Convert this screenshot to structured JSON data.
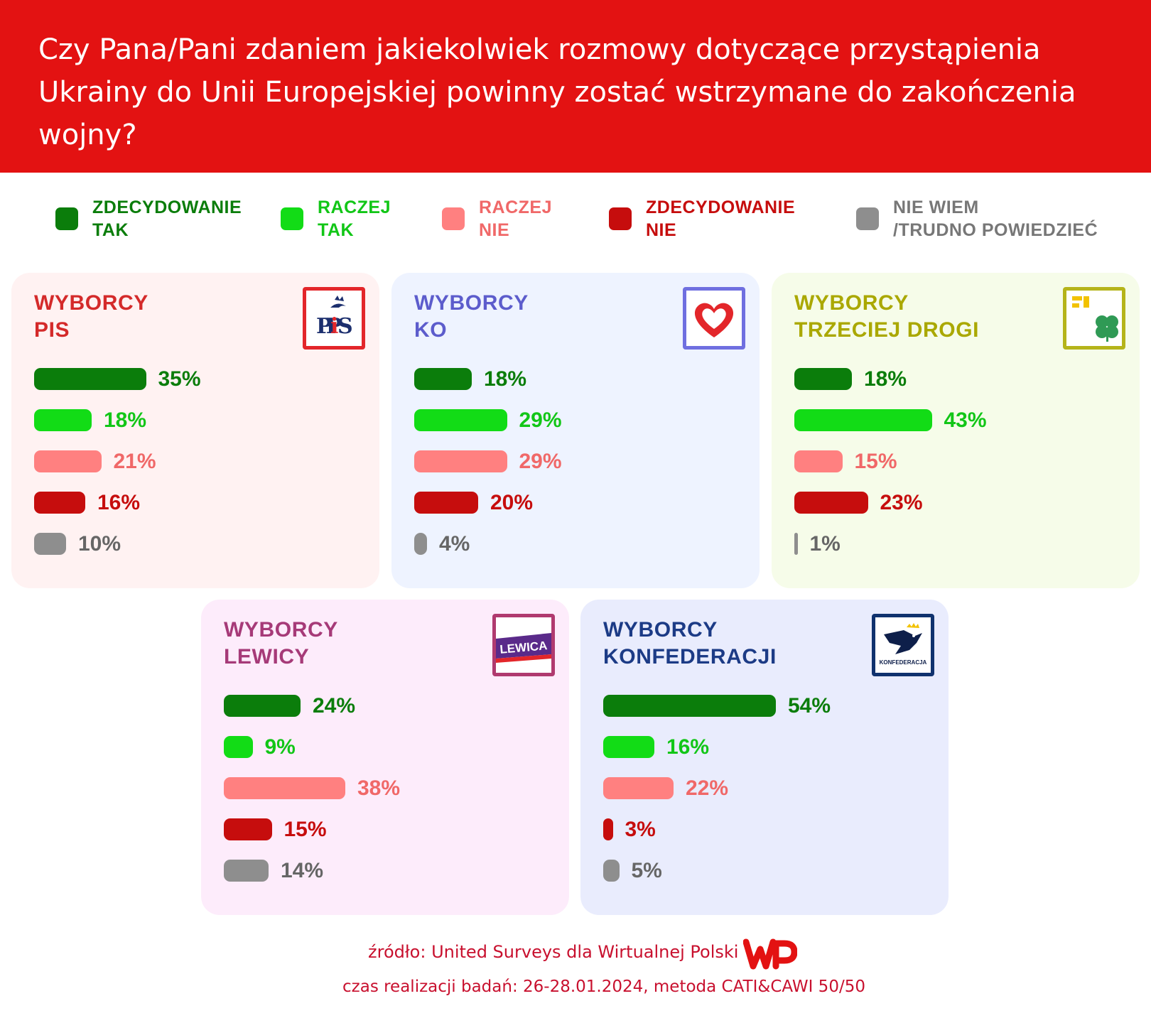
{
  "title": "Czy Pana/Pani zdaniem jakiekolwiek rozmowy dotyczące przystąpienia Ukrainy do Unii Europejskiej powinny zostać wstrzymane do zakończenia wojny?",
  "legend": [
    {
      "l1": "ZDECYDOWANIE",
      "l2": "TAK",
      "color": "#0b7d0b"
    },
    {
      "l1": "RACZEJ",
      "l2": "TAK",
      "color": "#12dc16"
    },
    {
      "l1": "RACZEJ",
      "l2": "NIE",
      "color": "#ff8080"
    },
    {
      "l1": "ZDECYDOWANIE",
      "l2": "NIE",
      "color": "#c60d0d"
    },
    {
      "l1": "NIE WIEM",
      "l2": "/TRUDNO POWIEDZIEĆ",
      "color": "#8e8e8e"
    }
  ],
  "chart_data": {
    "type": "bar",
    "orientation": "horizontal",
    "categories": [
      "ZDECYDOWANIE TAK",
      "RACZEJ TAK",
      "RACZEJ NIE",
      "ZDECYDOWANIE NIE",
      "NIE WIEM /TRUDNO POWIEDZIEĆ"
    ],
    "unit": "%",
    "panels": [
      {
        "t1": "WYBORCY",
        "t2": "PIS",
        "logo": "PiS",
        "values": [
          35,
          18,
          21,
          16,
          10
        ],
        "labels": [
          "35%",
          "18%",
          "21%",
          "16%",
          "10%"
        ]
      },
      {
        "t1": "WYBORCY",
        "t2": "KO",
        "logo": "heart",
        "values": [
          18,
          29,
          29,
          20,
          4
        ],
        "labels": [
          "18%",
          "29%",
          "29%",
          "20%",
          "4%"
        ]
      },
      {
        "t1": "WYBORCY",
        "t2": "TRZECIEJ DROGI",
        "logo": "clover",
        "values": [
          18,
          43,
          15,
          23,
          1
        ],
        "labels": [
          "18%",
          "43%",
          "15%",
          "23%",
          "1%"
        ]
      },
      {
        "t1": "WYBORCY",
        "t2": "LEWICY",
        "logo": "LEWICA",
        "values": [
          24,
          9,
          38,
          15,
          14
        ],
        "labels": [
          "24%",
          "9%",
          "38%",
          "15%",
          "14%"
        ]
      },
      {
        "t1": "WYBORCY",
        "t2": "KONFEDERACJI",
        "logo": "KONFEDERACJA",
        "values": [
          54,
          16,
          22,
          3,
          5
        ],
        "labels": [
          "54%",
          "16%",
          "22%",
          "3%",
          "5%"
        ]
      }
    ]
  },
  "footer": {
    "source": "źródło: United Surveys dla Wirtualnej Polski",
    "meta": "czas realizacji badań: 26-28.01.2024, metoda CATI&CAWI 50/50"
  }
}
